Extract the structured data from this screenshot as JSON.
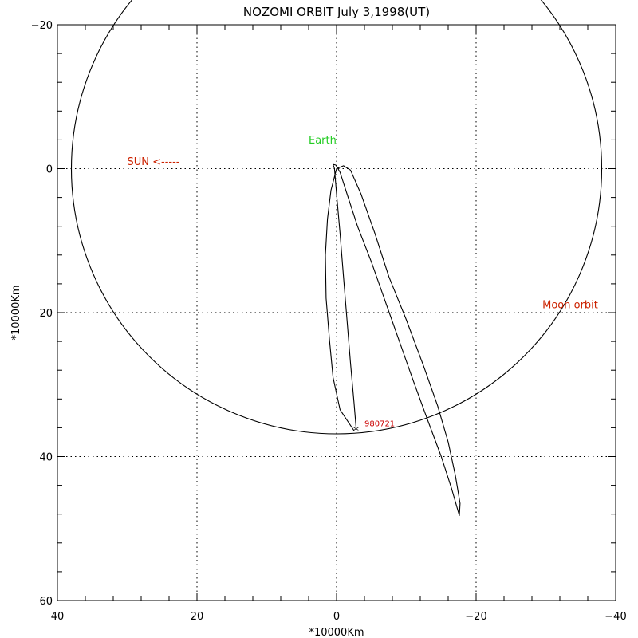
{
  "chart_data": {
    "type": "line",
    "title": "NOZOMI ORBIT July 3,1998(UT)",
    "xlabel": "*10000Km",
    "ylabel": "*10000Km",
    "xlim": [
      40,
      -40
    ],
    "ylim": [
      -20,
      60
    ],
    "xticks": [
      "40",
      "20",
      "0",
      "−20",
      "−40"
    ],
    "xtick_values": [
      40,
      20,
      0,
      -20,
      -40
    ],
    "yticks": [
      "−20",
      "0",
      "20",
      "40",
      "60"
    ],
    "ytick_values": [
      -20,
      0,
      20,
      40,
      60
    ],
    "grid": true,
    "series": [
      {
        "name": "Moon orbit",
        "shape": "circle",
        "center": [
          0,
          0
        ],
        "radius": 38,
        "color": "#000000"
      },
      {
        "name": "Nozomi trajectory",
        "color": "#000000",
        "x": [
          -2.5,
          -0.5,
          0.5,
          1.0,
          1.5,
          1.6,
          1.3,
          0.8,
          0.0,
          -1.0,
          -2.0,
          -3.5,
          -5.5,
          -7.5,
          -10.0,
          -12.5,
          -14.5,
          -16.0,
          -17.0,
          -17.7,
          -17.6,
          -16.5,
          -15.0,
          -13.0,
          -11.0,
          -9.0,
          -7.0,
          -5.0,
          -3.0,
          -1.5,
          -0.5,
          0.1,
          0.5,
          0.4,
          0.3,
          0.0,
          -0.5,
          -1.0,
          -1.5,
          -2.0,
          -2.5,
          -2.8
        ],
        "y": [
          36.4,
          33.5,
          29.0,
          24.0,
          18.0,
          12.0,
          7.0,
          3.0,
          0.0,
          -0.4,
          0.2,
          3.5,
          9.0,
          15.0,
          21.0,
          27.5,
          33.0,
          38.0,
          42.5,
          46.5,
          48.2,
          44.5,
          40.0,
          34.8,
          29.5,
          24.0,
          18.5,
          13.0,
          8.0,
          3.5,
          0.5,
          -0.5,
          -0.6,
          -0.3,
          0.0,
          3.5,
          9.0,
          15.0,
          21.0,
          27.0,
          32.5,
          36.0
        ]
      }
    ],
    "annotations": [
      {
        "text": "Earth",
        "x": 4,
        "y": -3.5,
        "color": "#22cc22"
      },
      {
        "text": "SUN <-----",
        "x": 30,
        "y": -0.5,
        "color": "#cc2200"
      },
      {
        "text": "Moon orbit",
        "x": -29.5,
        "y": 19.4,
        "color": "#cc2200"
      },
      {
        "text": "980721",
        "x": -4,
        "y": 35.8,
        "color": "#cc0000",
        "marker": "*",
        "marker_x": -2.8,
        "marker_y": 36.4
      }
    ]
  }
}
